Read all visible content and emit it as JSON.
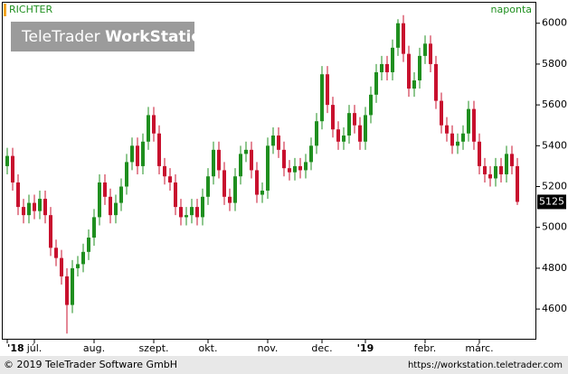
{
  "chart_data": {
    "type": "candlestick",
    "title": "RICHTER",
    "interval": "naponta",
    "logo": {
      "left": "TeleTrader",
      "right": "WorkStation"
    },
    "footer": {
      "left": "© 2019 TeleTrader Software GmbH",
      "right": "https://workstation.teletrader.com"
    },
    "up_color": "#1f8f1f",
    "down_color": "#c8102e",
    "ylim": [
      4450,
      6105
    ],
    "yticks": [
      4600,
      4800,
      5000,
      5200,
      5400,
      5600,
      5800,
      6000
    ],
    "categories": [
      "'18",
      null,
      null,
      null,
      null,
      "júl.",
      null,
      null,
      null,
      null,
      null,
      null,
      null,
      null,
      null,
      null,
      "aug.",
      null,
      null,
      null,
      null,
      null,
      null,
      null,
      null,
      null,
      null,
      "szept.",
      null,
      null,
      null,
      null,
      null,
      null,
      null,
      null,
      null,
      "okt.",
      null,
      null,
      null,
      null,
      null,
      null,
      null,
      null,
      null,
      null,
      "nov.",
      null,
      null,
      null,
      null,
      null,
      null,
      null,
      null,
      null,
      "dec.",
      null,
      null,
      null,
      null,
      null,
      null,
      null,
      "'19",
      null,
      null,
      null,
      null,
      null,
      null,
      null,
      null,
      null,
      null,
      "febr.",
      null,
      null,
      null,
      null,
      null,
      null,
      null,
      null,
      null,
      "márc.",
      null,
      null,
      null,
      null,
      null,
      null,
      null
    ],
    "open": [
      5300,
      5350,
      5220,
      5100,
      5060,
      5120,
      5080,
      5140,
      5060,
      4900,
      4850,
      4760,
      4620,
      4800,
      4820,
      4880,
      4950,
      5050,
      5220,
      5150,
      5060,
      5120,
      5200,
      5320,
      5400,
      5300,
      5420,
      5550,
      5460,
      5300,
      5250,
      5220,
      5100,
      5050,
      5060,
      5100,
      5050,
      5150,
      5250,
      5380,
      5280,
      5150,
      5120,
      5250,
      5360,
      5380,
      5280,
      5160,
      5180,
      5400,
      5450,
      5380,
      5290,
      5270,
      5300,
      5280,
      5320,
      5400,
      5520,
      5750,
      5600,
      5480,
      5420,
      5450,
      5560,
      5500,
      5420,
      5550,
      5650,
      5760,
      5800,
      5760,
      5880,
      6000,
      5850,
      5680,
      5720,
      5840,
      5900,
      5800,
      5620,
      5500,
      5460,
      5400,
      5420,
      5460,
      5580,
      5420,
      5300,
      5260,
      5240,
      5300,
      5260,
      5360,
      5300
    ],
    "high": [
      5390,
      5390,
      5260,
      5140,
      5160,
      5160,
      5180,
      5180,
      5100,
      4940,
      4890,
      4800,
      4840,
      4860,
      4920,
      4990,
      5090,
      5260,
      5260,
      5190,
      5160,
      5240,
      5360,
      5440,
      5440,
      5460,
      5590,
      5590,
      5500,
      5340,
      5290,
      5260,
      5140,
      5100,
      5140,
      5140,
      5190,
      5290,
      5420,
      5420,
      5320,
      5190,
      5290,
      5400,
      5420,
      5420,
      5320,
      5220,
      5440,
      5490,
      5490,
      5420,
      5330,
      5340,
      5340,
      5360,
      5440,
      5560,
      5790,
      5790,
      5640,
      5520,
      5490,
      5600,
      5600,
      5540,
      5590,
      5690,
      5800,
      5840,
      5840,
      5920,
      6020,
      6040,
      5890,
      5760,
      5880,
      5940,
      5940,
      5840,
      5660,
      5540,
      5500,
      5460,
      5500,
      5620,
      5620,
      5460,
      5340,
      5300,
      5340,
      5340,
      5400,
      5400,
      5340
    ],
    "low": [
      5260,
      5180,
      5060,
      5020,
      5020,
      5040,
      5040,
      5020,
      4860,
      4810,
      4720,
      4480,
      4580,
      4760,
      4780,
      4840,
      4910,
      5010,
      5110,
      5020,
      5020,
      5080,
      5160,
      5280,
      5260,
      5260,
      5380,
      5420,
      5260,
      5210,
      5180,
      5060,
      5010,
      5010,
      5020,
      5010,
      5010,
      5110,
      5210,
      5240,
      5110,
      5080,
      5080,
      5210,
      5320,
      5240,
      5120,
      5120,
      5140,
      5360,
      5340,
      5250,
      5230,
      5230,
      5240,
      5240,
      5280,
      5360,
      5480,
      5560,
      5440,
      5380,
      5380,
      5410,
      5460,
      5380,
      5380,
      5510,
      5610,
      5720,
      5720,
      5720,
      5840,
      5810,
      5640,
      5640,
      5680,
      5800,
      5760,
      5580,
      5460,
      5420,
      5360,
      5360,
      5380,
      5420,
      5380,
      5260,
      5220,
      5200,
      5200,
      5220,
      5220,
      5260,
      5110
    ],
    "close": [
      5350,
      5220,
      5100,
      5060,
      5120,
      5080,
      5140,
      5060,
      4900,
      4850,
      4760,
      4620,
      4800,
      4820,
      4880,
      4950,
      5050,
      5220,
      5150,
      5060,
      5120,
      5200,
      5320,
      5400,
      5300,
      5420,
      5550,
      5460,
      5300,
      5250,
      5220,
      5100,
      5050,
      5060,
      5100,
      5050,
      5150,
      5250,
      5380,
      5280,
      5150,
      5120,
      5250,
      5360,
      5380,
      5280,
      5160,
      5180,
      5400,
      5450,
      5380,
      5290,
      5270,
      5300,
      5280,
      5320,
      5400,
      5520,
      5750,
      5600,
      5480,
      5420,
      5450,
      5560,
      5500,
      5420,
      5550,
      5650,
      5760,
      5800,
      5760,
      5880,
      6000,
      5850,
      5680,
      5720,
      5840,
      5900,
      5800,
      5620,
      5500,
      5460,
      5400,
      5420,
      5460,
      5580,
      5420,
      5300,
      5260,
      5240,
      5300,
      5260,
      5360,
      5300,
      5125
    ]
  }
}
